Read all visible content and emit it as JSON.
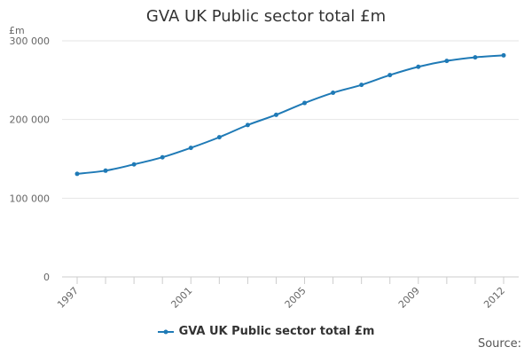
{
  "chart_data": {
    "type": "line",
    "title": "GVA UK Public sector total £m",
    "ylabel": "£m",
    "xlabel": "",
    "x": [
      1997,
      1998,
      1999,
      2000,
      2001,
      2002,
      2003,
      2004,
      2005,
      2006,
      2007,
      2008,
      2009,
      2010,
      2011,
      2012
    ],
    "x_tick_labels": [
      "1997",
      "2001",
      "2005",
      "2009",
      "2012"
    ],
    "y_tick_labels": [
      "0",
      "100 000",
      "200 000",
      "300 000"
    ],
    "ylim": [
      0,
      300000
    ],
    "grid": true,
    "legend_position": "bottom",
    "series": [
      {
        "name": "GVA UK Public sector total £m",
        "color": "#1f7ab6",
        "values": [
          131000,
          135000,
          143000,
          152000,
          164000,
          177500,
          193000,
          206000,
          221000,
          234000,
          244000,
          256500,
          267000,
          274500,
          279000,
          281500
        ]
      }
    ]
  },
  "source_label": "Source:"
}
